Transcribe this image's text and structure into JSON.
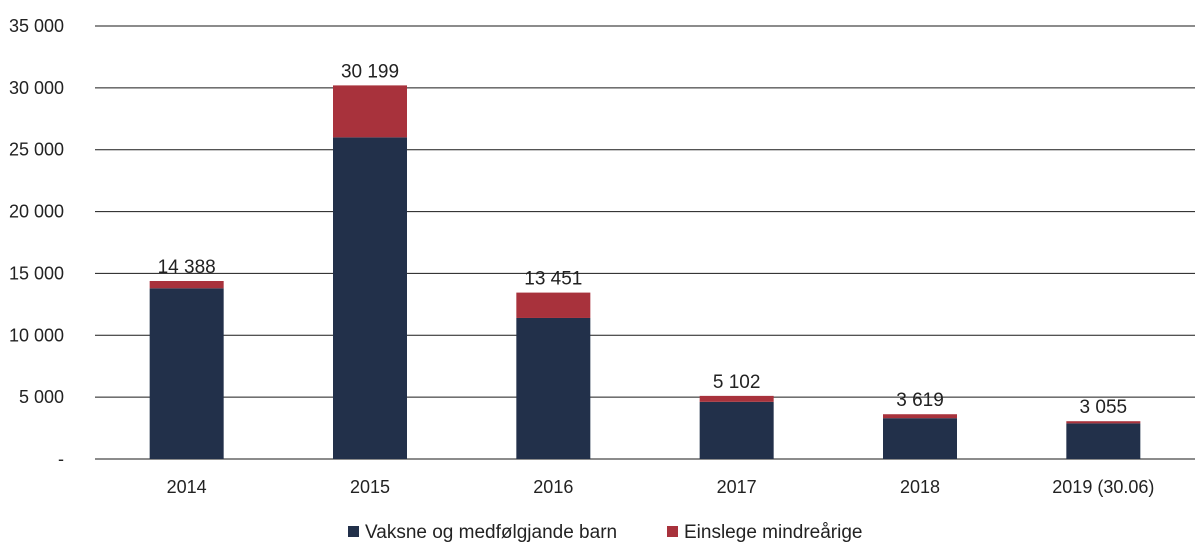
{
  "chart_data": {
    "type": "bar",
    "stacked": true,
    "title": "",
    "xlabel": "",
    "ylabel": "",
    "categories": [
      "2014",
      "2015",
      "2016",
      "2017",
      "2018",
      "2019 (30.06)"
    ],
    "series": [
      {
        "name": "Vaksne og medfølgjande barn",
        "color": "#22304a",
        "values": [
          13800,
          26000,
          11400,
          4620,
          3300,
          2880
        ]
      },
      {
        "name": "Einslege mindreårige",
        "color": "#a8323c",
        "values": [
          588,
          4199,
          2051,
          482,
          319,
          175
        ]
      }
    ],
    "totals": [
      14388,
      30199,
      13451,
      5102,
      3619,
      3055
    ],
    "total_labels": [
      "14 388",
      "30 199",
      "13 451",
      "5 102",
      "3 619",
      "3 055"
    ],
    "ylim": [
      0,
      35000
    ],
    "yticks": [
      0,
      5000,
      10000,
      15000,
      20000,
      25000,
      30000,
      35000
    ],
    "ytick_labels": [
      "-",
      "5 000",
      "10 000",
      "15 000",
      "20 000",
      "25 000",
      "30 000",
      "35 000"
    ],
    "grid": true,
    "legend_position": "bottom-center"
  }
}
